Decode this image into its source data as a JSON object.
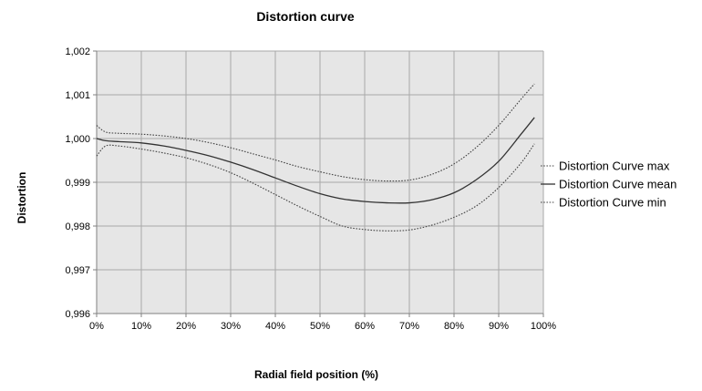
{
  "chart_data": {
    "type": "line",
    "title": "Distortion curve",
    "xlabel": "Radial field position (%)",
    "ylabel": "Distortion",
    "xlim": [
      0,
      100
    ],
    "ylim": [
      0.996,
      1.002
    ],
    "x_ticks": [
      0,
      10,
      20,
      30,
      40,
      50,
      60,
      70,
      80,
      90,
      100
    ],
    "x_tick_labels": [
      "0%",
      "10%",
      "20%",
      "30%",
      "40%",
      "50%",
      "60%",
      "70%",
      "80%",
      "90%",
      "100%"
    ],
    "y_ticks": [
      0.996,
      0.997,
      0.998,
      0.999,
      1.0,
      1.001,
      1.002
    ],
    "y_tick_labels": [
      "0,996",
      "0,997",
      "0,998",
      "0,999",
      "1,000",
      "1,001",
      "1,002"
    ],
    "grid": true,
    "legend_position": "right",
    "plot_background": "#e6e6e6",
    "series": [
      {
        "name": "Distortion Curve max",
        "style": "dotted",
        "color": "#444444",
        "x": [
          0,
          2,
          5,
          10,
          15,
          20,
          25,
          30,
          35,
          40,
          45,
          50,
          55,
          60,
          65,
          70,
          75,
          80,
          85,
          90,
          95,
          98
        ],
        "y": [
          1.0003,
          1.00015,
          1.00012,
          1.0001,
          1.00006,
          1.0,
          0.99991,
          0.99979,
          0.99965,
          0.99951,
          0.99936,
          0.99924,
          0.99913,
          0.99906,
          0.99903,
          0.99905,
          0.99918,
          0.99942,
          0.9998,
          1.0003,
          1.0009,
          1.00125
        ]
      },
      {
        "name": "Distortion Curve mean",
        "style": "solid",
        "color": "#333333",
        "x": [
          0,
          2,
          5,
          10,
          15,
          20,
          25,
          30,
          35,
          40,
          45,
          50,
          55,
          60,
          65,
          70,
          75,
          80,
          85,
          90,
          95,
          98
        ],
        "y": [
          1.0,
          0.99995,
          0.99993,
          0.9999,
          0.99983,
          0.99973,
          0.99961,
          0.99946,
          0.99929,
          0.9991,
          0.99891,
          0.99874,
          0.99862,
          0.99856,
          0.99853,
          0.99853,
          0.9986,
          0.99876,
          0.99906,
          0.99948,
          1.0001,
          1.00048
        ]
      },
      {
        "name": "Distortion Curve min",
        "style": "dotted",
        "color": "#444444",
        "x": [
          0,
          2,
          5,
          10,
          15,
          20,
          25,
          30,
          35,
          40,
          45,
          50,
          55,
          60,
          65,
          70,
          75,
          80,
          85,
          90,
          95,
          98
        ],
        "y": [
          0.9996,
          0.99983,
          0.99983,
          0.99976,
          0.99967,
          0.99956,
          0.99941,
          0.99922,
          0.99898,
          0.99872,
          0.99846,
          0.99822,
          0.998,
          0.99792,
          0.99789,
          0.99791,
          0.99802,
          0.9982,
          0.99846,
          0.99888,
          0.99944,
          0.99988
        ]
      }
    ]
  }
}
